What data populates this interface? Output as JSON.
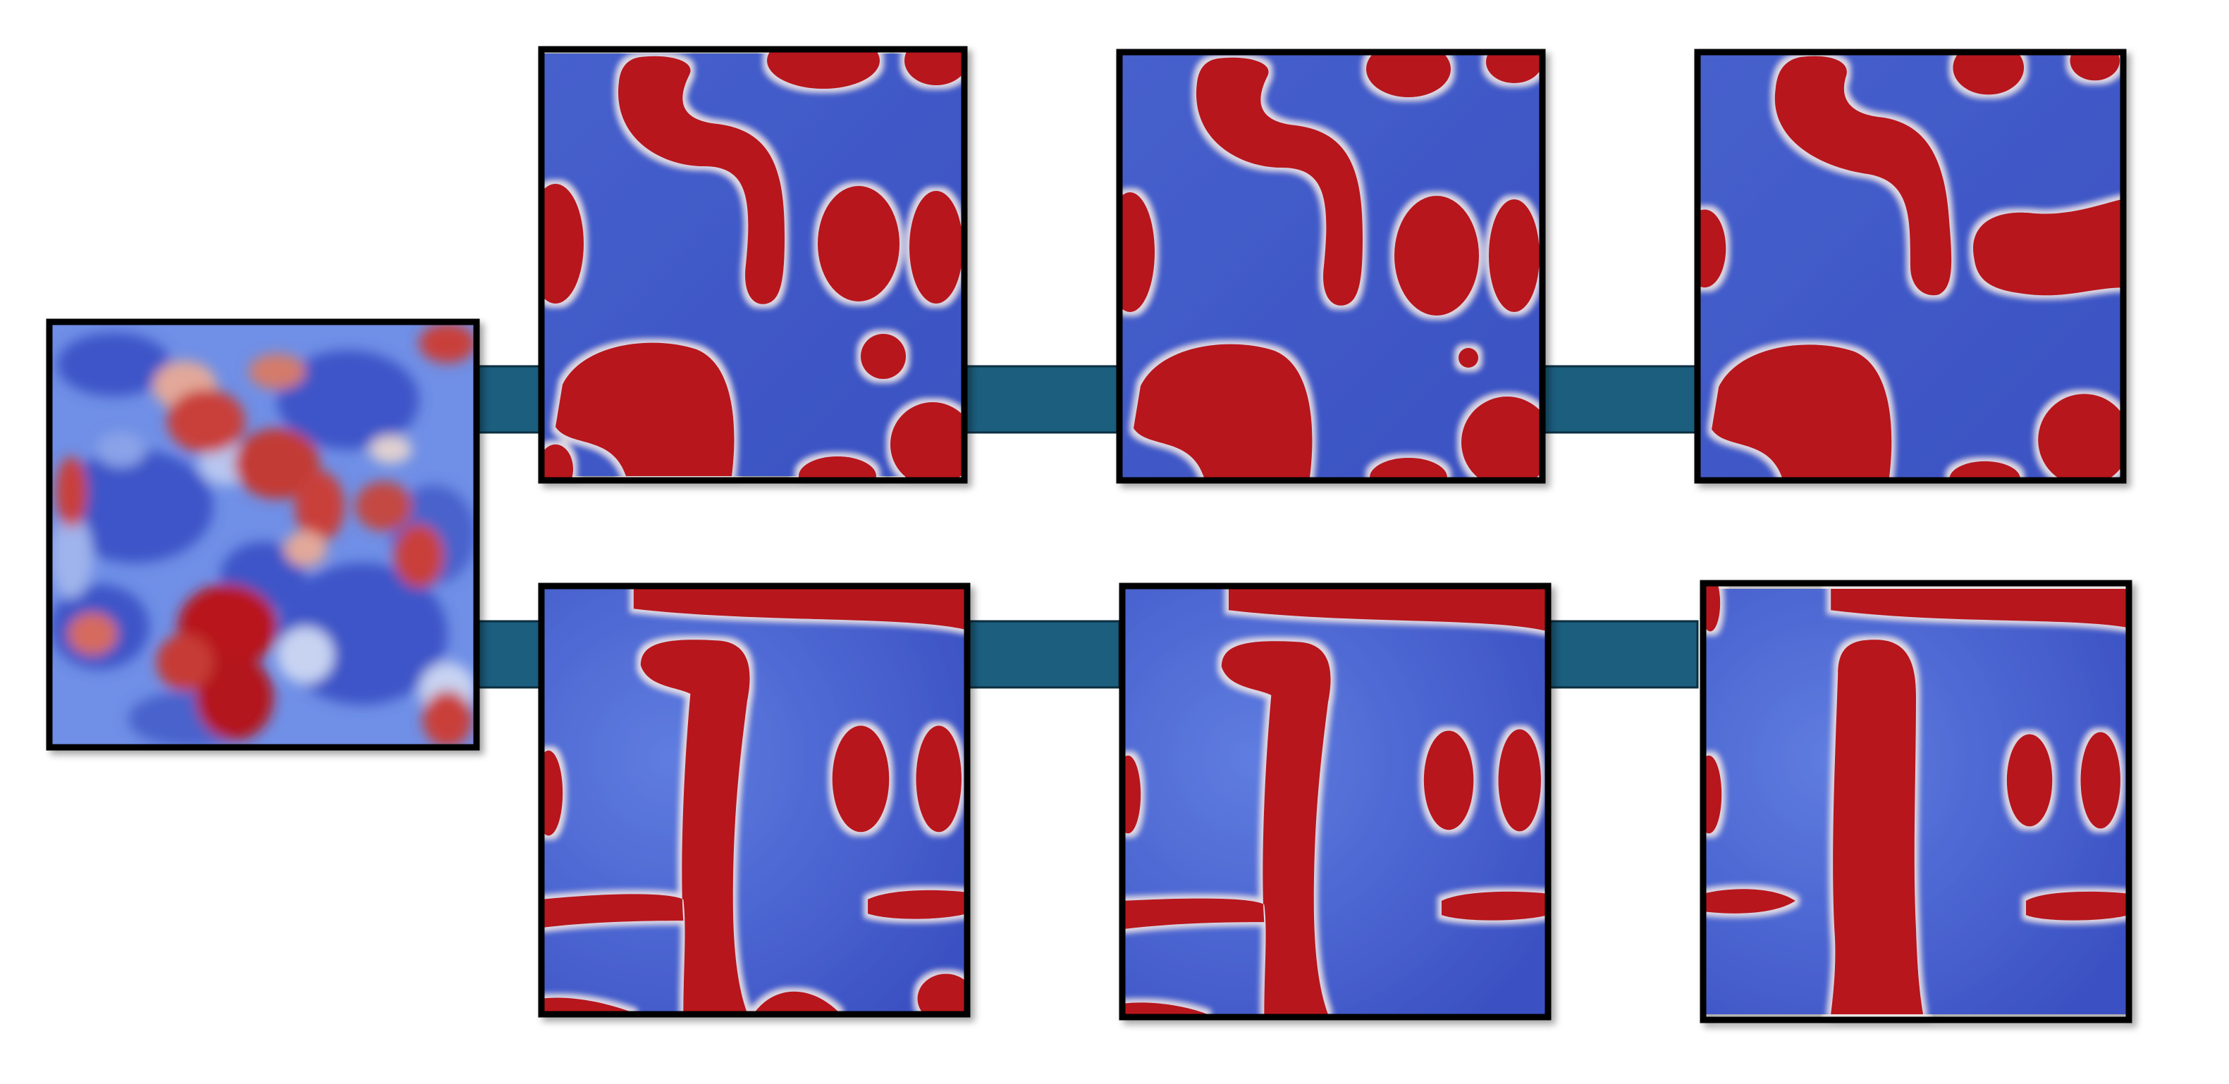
{
  "colors": {
    "background": "#ffffff",
    "connector": "#1b5e7e",
    "frame_border": "#000000",
    "field_low": "#3d56c6",
    "field_mid": "#dcdcdc",
    "field_high": "#b1131f"
  },
  "diagram": {
    "initial_field": {
      "name": "initial-noise-field",
      "pattern": "random-noise"
    },
    "rows": [
      {
        "name": "top-row",
        "pattern": "droplet-coarsening",
        "panels": [
          {
            "name": "top-panel-1"
          },
          {
            "name": "top-panel-2"
          },
          {
            "name": "top-panel-3"
          }
        ]
      },
      {
        "name": "bottom-row",
        "pattern": "lamellar-stripes",
        "panels": [
          {
            "name": "bottom-panel-1"
          },
          {
            "name": "bottom-panel-2"
          },
          {
            "name": "bottom-panel-3"
          }
        ]
      }
    ]
  }
}
